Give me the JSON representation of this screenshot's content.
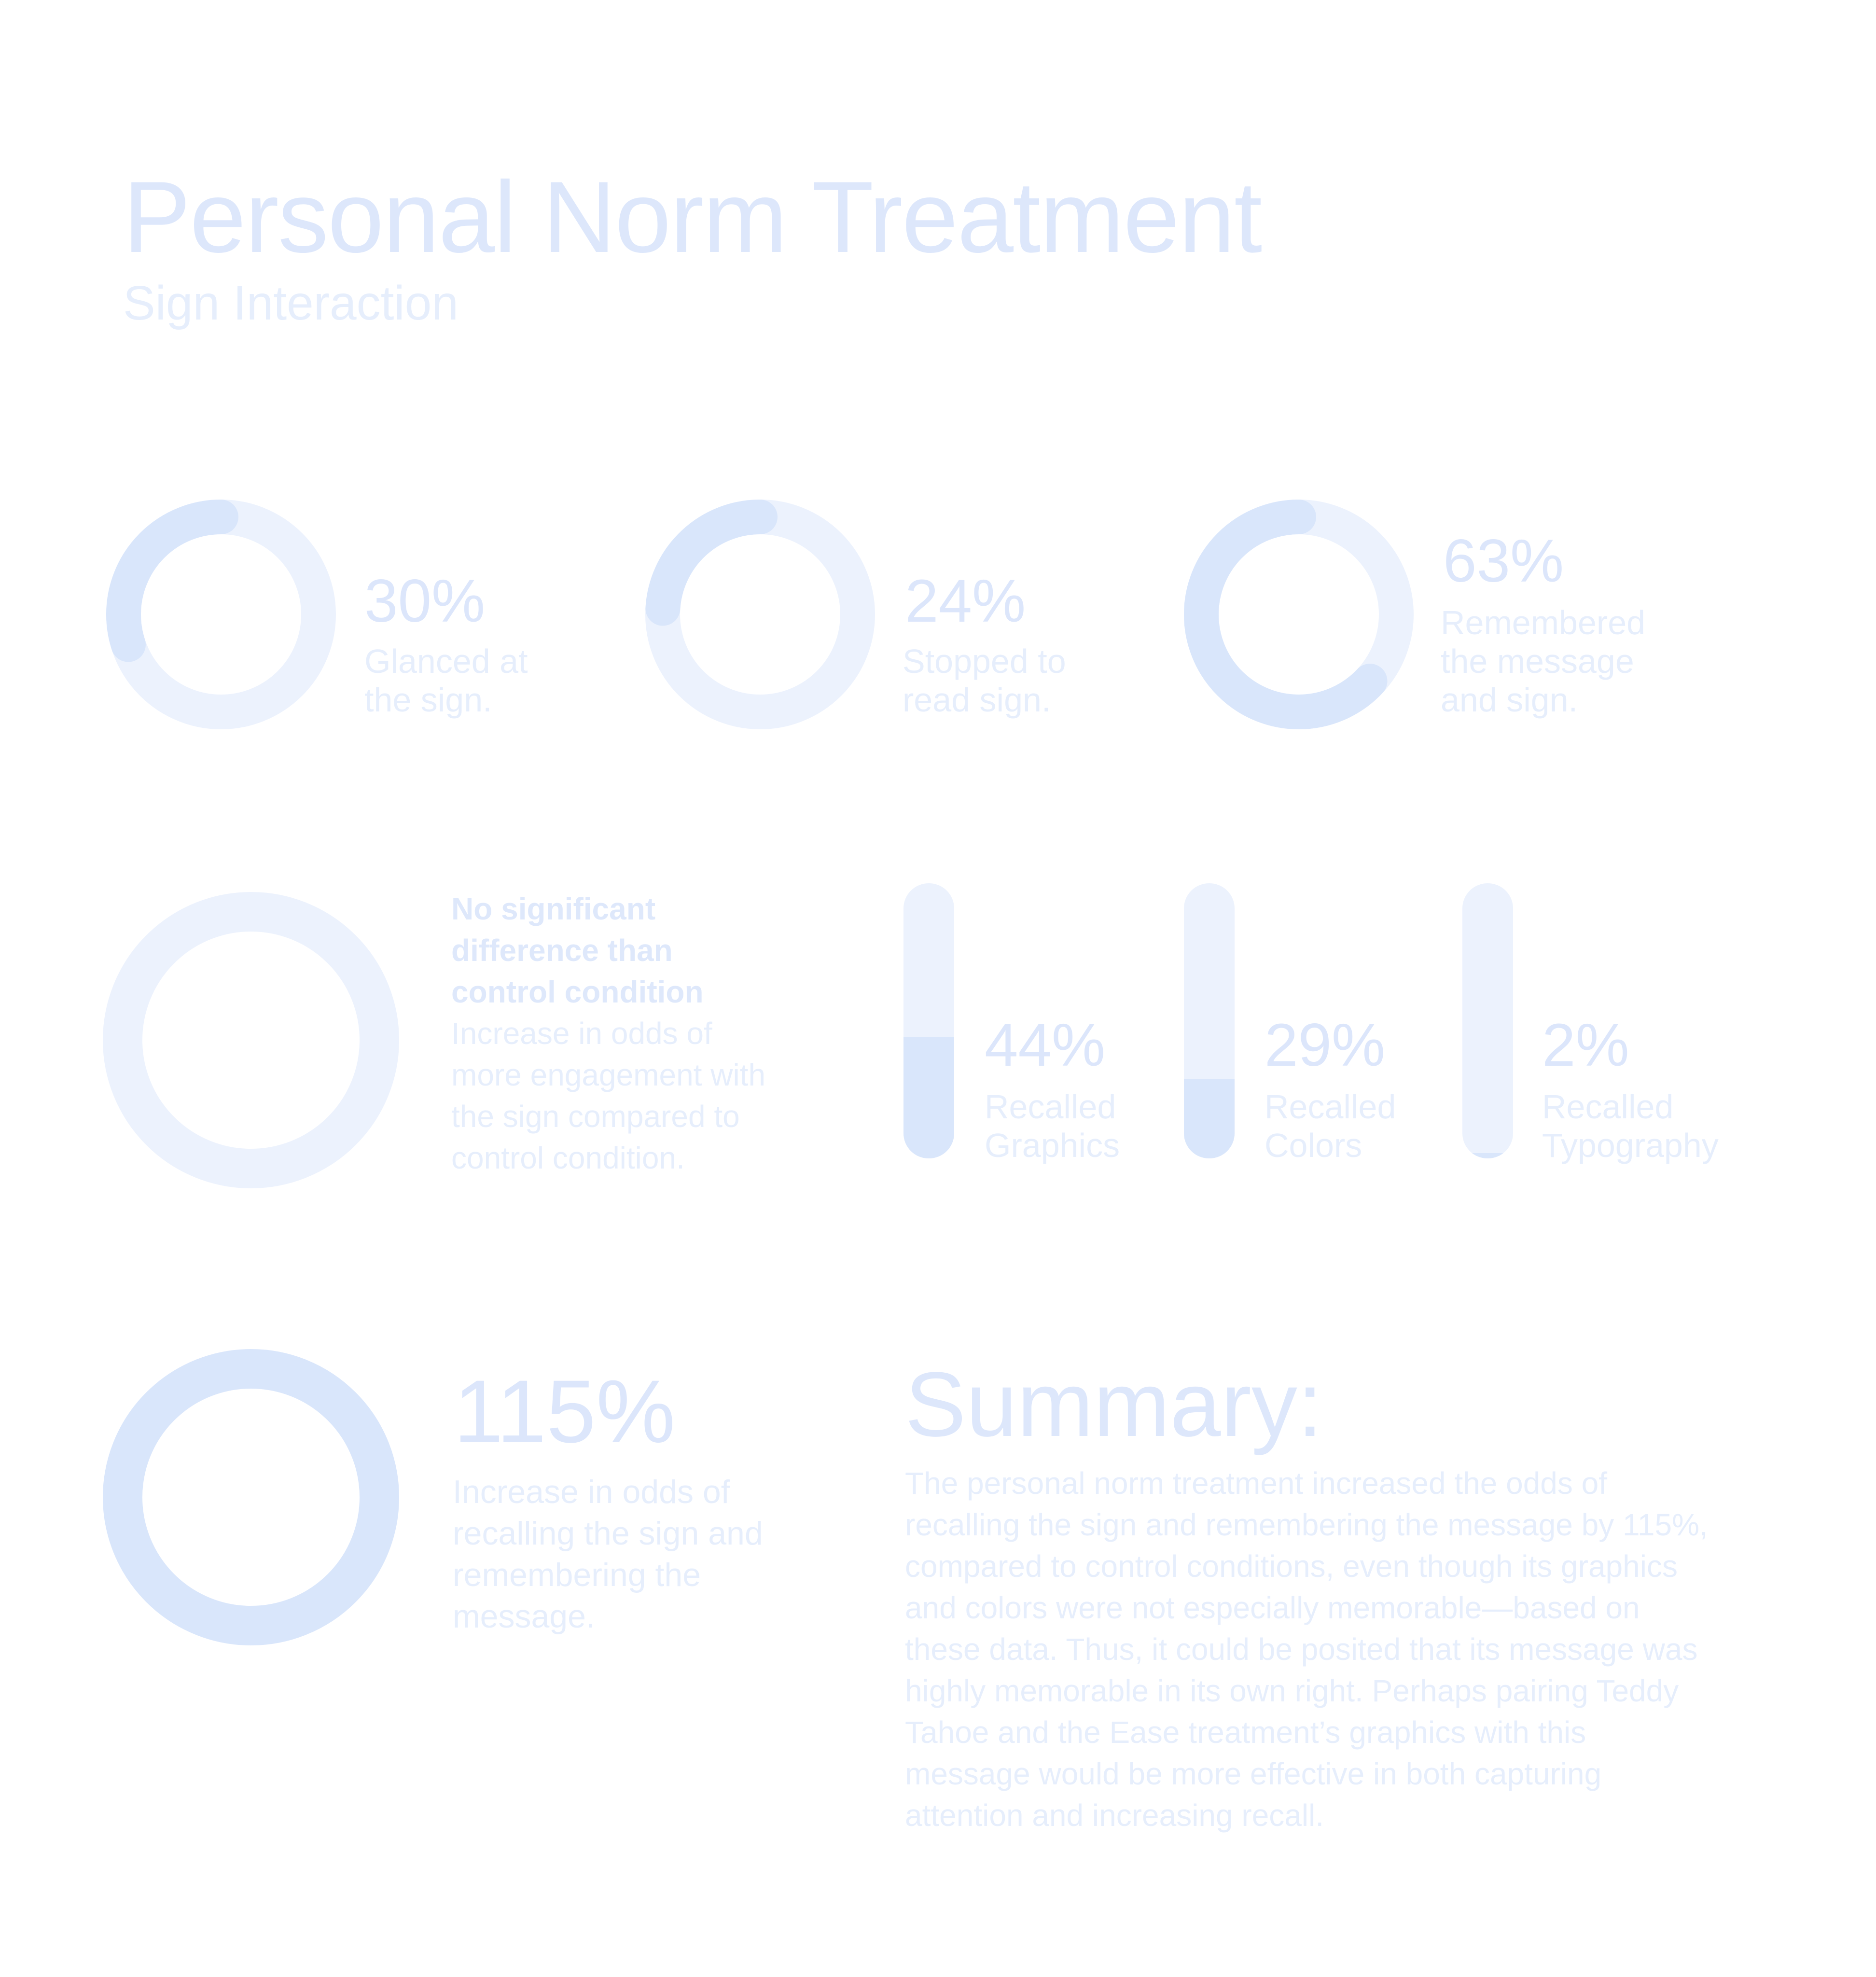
{
  "header": {
    "title": "Personal Norm Treatment",
    "subtitle": "Sign Interaction"
  },
  "colors": {
    "ring_track": "#ecf2fd",
    "ring_fill": "#d9e6fb",
    "text_primary": "#dce6fb",
    "text_secondary": "#e6eefc"
  },
  "chart_data": [
    {
      "type": "pie",
      "variant": "donut-progress",
      "items": [
        {
          "value": 30,
          "label": "30%",
          "description": "Glanced at\nthe sign."
        },
        {
          "value": 24,
          "label": "24%",
          "description": "Stopped to\nread  sign."
        },
        {
          "value": 63,
          "label": "63%",
          "description": "Remembered\nthe message\nand sign."
        }
      ]
    },
    {
      "type": "bar",
      "variant": "vertical-progress",
      "categories": [
        "Recalled\nGraphics",
        "Recalled\nColors",
        "Recalled\nTypography"
      ],
      "values": [
        44,
        29,
        2
      ],
      "value_labels": [
        "44%",
        "29%",
        "2%"
      ],
      "ylim": [
        0,
        100
      ]
    }
  ],
  "engagement": {
    "heading": "No significant\ndifference than\ncontrol condition",
    "description": "Increase in odds of\nmore engagement with\nthe sign compared to\ncontrol condition."
  },
  "recall": {
    "value_label": "115%",
    "description": "Increase in odds of\nrecalling the sign and\nremembering the\nmessage."
  },
  "summary": {
    "heading": "Summary:",
    "body": "The personal norm treatment increased the odds of recalling the sign and remembering the message by 115%, compared to control conditions, even though its graphics and colors were not especially memorable—based on these data. Thus, it could be posited that its message was highly memorable in its own right. Perhaps pairing Teddy Tahoe and the Ease treatment’s graphics with this message would be more effective in both capturing attention and increasing recall."
  }
}
